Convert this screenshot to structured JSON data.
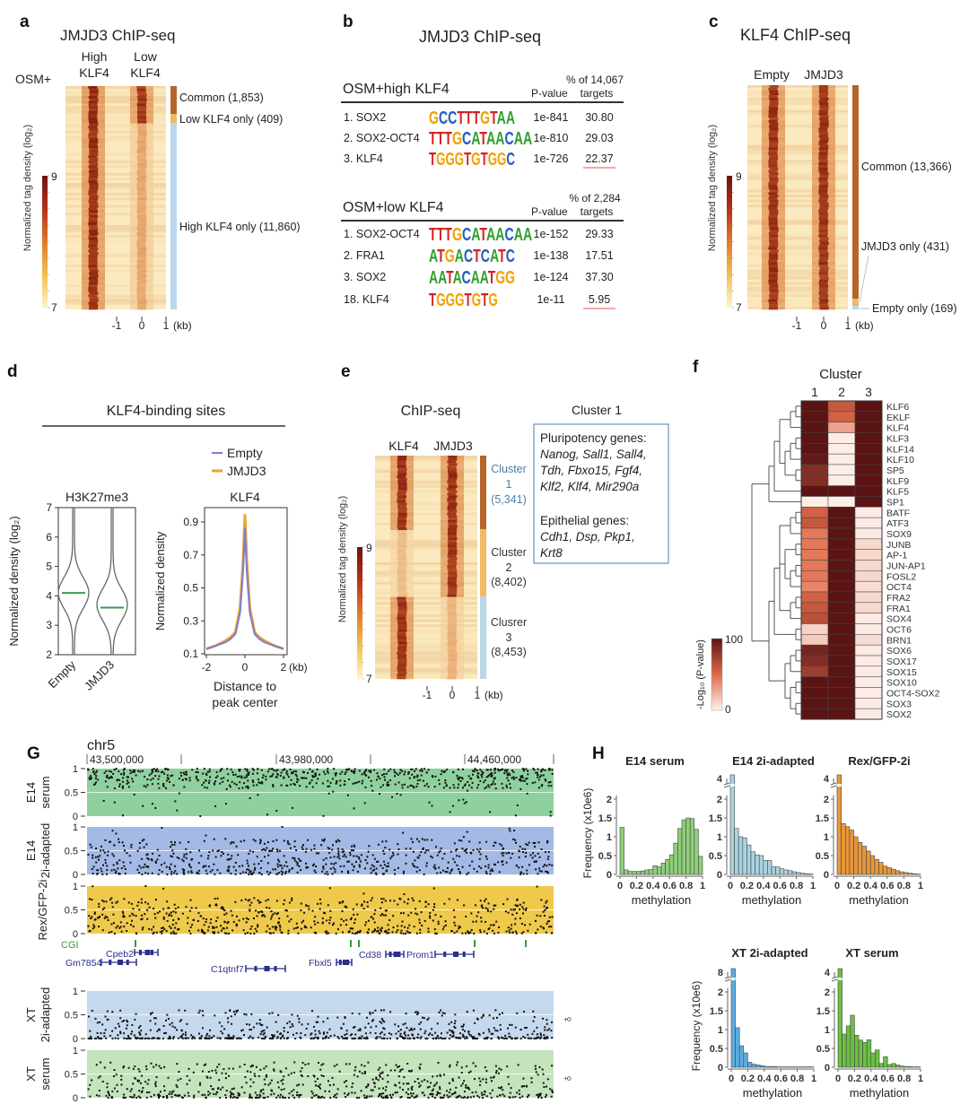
{
  "panels": {
    "a": {
      "label": "a"
    },
    "b": {
      "label": "b"
    },
    "c": {
      "label": "c"
    },
    "d": {
      "label": "d",
      "title": "KLF4-binding sites"
    },
    "e": {
      "label": "e"
    },
    "f": {
      "label": "f"
    },
    "G": {
      "label": "G"
    },
    "H": {
      "label": "H"
    }
  },
  "chart_data": [
    {
      "type": "heatmap",
      "title": "JMJD3 ChIP-seq",
      "row_label": "OSM+",
      "columns": [
        [
          "High",
          "KLF4"
        ],
        [
          "Low",
          "KLF4"
        ]
      ],
      "x_ticks": [
        "-1",
        "0",
        "1"
      ],
      "x_unit": "(kb)",
      "groups": [
        {
          "label": "Common (1,853)",
          "count": 1853,
          "color": "#b5652a"
        },
        {
          "label": "Low KLF4 only (409)",
          "count": 409,
          "color": "#f3b866"
        },
        {
          "label": "High KLF4 only (11,860)",
          "count": 11860,
          "color": "#bcd6ea"
        }
      ],
      "colorbar": {
        "label": "Normalized tag density (log₂)",
        "max": "9",
        "min": "7"
      }
    },
    {
      "type": "table",
      "title": "JMJD3 ChIP-seq",
      "motif_colors": {
        "A": "#2ca02c",
        "C": "#1f5fbf",
        "G": "#f0a000",
        "T": "#d62020"
      },
      "tables": [
        {
          "condition": "OSM+high KLF4",
          "pvalue_header": "P-value",
          "pct_header": [
            "% of 14,067",
            "targets"
          ],
          "rows": [
            {
              "rank": "1. SOX2",
              "motif": "GCCTTTGTAA",
              "pvalue": "1e-841",
              "pct": "30.80",
              "underline": false
            },
            {
              "rank": "2. SOX2-OCT4",
              "motif": "TTTGCATAACAA",
              "pvalue": "1e-810",
              "pct": "29.03",
              "underline": false
            },
            {
              "rank": "3. KLF4",
              "motif": "TGGGTGTGGC",
              "pvalue": "1e-726",
              "pct": "22.37",
              "underline": true
            }
          ]
        },
        {
          "condition": "OSM+low KLF4",
          "pvalue_header": "P-value",
          "pct_header": [
            "% of 2,284",
            "targets"
          ],
          "rows": [
            {
              "rank": "1. SOX2-OCT4",
              "motif": "TTTGCATAACAA",
              "pvalue": "1e-152",
              "pct": "29.33",
              "underline": false
            },
            {
              "rank": "2. FRA1",
              "motif": "ATGACTCATC",
              "pvalue": "1e-138",
              "pct": "17.51",
              "underline": false
            },
            {
              "rank": "3. SOX2",
              "motif": "AATACAATGG",
              "pvalue": "1e-124",
              "pct": "37.30",
              "underline": false
            },
            {
              "rank": "18. KLF4",
              "motif": "TGGGTGTG",
              "pvalue": "1e-11",
              "pct": "5.95",
              "underline": true
            }
          ]
        }
      ]
    },
    {
      "type": "heatmap",
      "title": "KLF4 ChIP-seq",
      "columns": [
        [
          "Empty"
        ],
        [
          "JMJD3"
        ]
      ],
      "x_ticks": [
        "-1",
        "0",
        "1"
      ],
      "x_unit": "(kb)",
      "groups": [
        {
          "label": "Common (13,366)",
          "count": 13366,
          "color": "#b5652a"
        },
        {
          "label": "JMJD3 only (431)",
          "count": 431,
          "color": "#f3b866"
        },
        {
          "label": "Empty only (169)",
          "count": 169,
          "color": "#bcd6ea"
        }
      ],
      "colorbar": {
        "label": "Normalized tag density (log₂)",
        "max": "9",
        "min": "7"
      }
    },
    {
      "type": "violin",
      "title": "H3K27me3",
      "ylabel": "Normalized density (log₂)",
      "ylim": [
        2,
        7
      ],
      "yticks": [
        "2",
        "3",
        "4",
        "5",
        "6",
        "7"
      ],
      "categories": [
        "Empty",
        "JMJD3"
      ],
      "medians": [
        4.1,
        3.6
      ],
      "median_color": "#3a9a4a"
    },
    {
      "type": "line",
      "title": "KLF4",
      "ylabel": "Normalized density",
      "xlabel": [
        "Distance to",
        "peak center"
      ],
      "x_unit": "(kb)",
      "xlim": [
        -2,
        2
      ],
      "ylim": [
        0.1,
        0.97
      ],
      "xticks": [
        "-2",
        "0",
        "2"
      ],
      "yticks": [
        "0.1",
        "0.3",
        "0.5",
        "0.7",
        "0.9"
      ],
      "legend": "top",
      "x": [
        -2,
        -1.5,
        -1,
        -0.75,
        -0.5,
        -0.25,
        -0.1,
        0,
        0.1,
        0.25,
        0.5,
        0.75,
        1,
        1.5,
        2
      ],
      "series": [
        {
          "name": "Empty",
          "color": "#7b7fd0",
          "values": [
            0.13,
            0.15,
            0.17,
            0.19,
            0.22,
            0.35,
            0.6,
            0.86,
            0.6,
            0.35,
            0.22,
            0.19,
            0.17,
            0.15,
            0.13
          ]
        },
        {
          "name": "JMJD3",
          "color": "#f0a030",
          "values": [
            0.13,
            0.15,
            0.18,
            0.2,
            0.23,
            0.38,
            0.66,
            0.94,
            0.66,
            0.38,
            0.23,
            0.2,
            0.18,
            0.15,
            0.13
          ]
        }
      ]
    },
    {
      "type": "heatmap",
      "title": "ChIP-seq",
      "columns": [
        [
          "KLF4"
        ],
        [
          "JMJD3"
        ]
      ],
      "x_ticks": [
        "-1",
        "0",
        "1"
      ],
      "x_unit": "(kb)",
      "groups": [
        {
          "lines": [
            "Cluster",
            "1",
            "(5,341)"
          ],
          "count": 5341,
          "color": "#b5652a",
          "text_color": "#4a7fa8"
        },
        {
          "lines": [
            "Cluster",
            "2",
            "(8,402)"
          ],
          "count": 8402,
          "color": "#f3b866",
          "text_color": "#333333"
        },
        {
          "lines": [
            "Clusrer",
            "3",
            "(8,453)"
          ],
          "count": 8453,
          "color": "#bcd6ea",
          "text_color": "#333333"
        }
      ],
      "colorbar": {
        "label": "Normalized tag density (log₂)",
        "max": "9",
        "min": "7"
      },
      "annotation": {
        "title": "Cluster 1",
        "sections": [
          {
            "heading": "Pluripotency genes:",
            "genes": [
              "Nanog, Sall1, Sall4,",
              "Tdh, Fbxo15, Fgf4,",
              "Klf2, Klf4, Mir290a"
            ]
          },
          {
            "heading": "Epithelial genes:",
            "genes": [
              "Cdh1, Dsp, Pkp1,",
              "Krt8"
            ]
          }
        ]
      }
    },
    {
      "type": "heatmap",
      "title": "Cluster",
      "columns": [
        "1",
        "2",
        "3"
      ],
      "rows": [
        "KLF6",
        "EKLF",
        "KLF4",
        "KLF3",
        "KLF14",
        "KLF10",
        "SP5",
        "KLF9",
        "KLF5",
        "SP1",
        "BATF",
        "ATF3",
        "SOX9",
        "JUNB",
        "AP-1",
        "JUN-AP1",
        "FOSL2",
        "OCT4",
        "FRA2",
        "FRA1",
        "SOX4",
        "OCT6",
        "BRN1",
        "SOX6",
        "SOX17",
        "SOX15",
        "SOX10",
        "OCT4-SOX2",
        "SOX3",
        "SOX2"
      ],
      "values": [
        [
          100,
          60,
          100
        ],
        [
          100,
          55,
          100
        ],
        [
          100,
          30,
          100
        ],
        [
          100,
          2,
          100
        ],
        [
          100,
          2,
          100
        ],
        [
          97,
          2,
          100
        ],
        [
          85,
          2,
          100
        ],
        [
          85,
          2,
          100
        ],
        [
          100,
          100,
          100
        ],
        [
          2,
          2,
          100
        ],
        [
          55,
          100,
          3
        ],
        [
          60,
          100,
          3
        ],
        [
          45,
          100,
          3
        ],
        [
          45,
          100,
          10
        ],
        [
          45,
          100,
          10
        ],
        [
          45,
          100,
          10
        ],
        [
          45,
          100,
          10
        ],
        [
          40,
          100,
          8
        ],
        [
          55,
          100,
          10
        ],
        [
          60,
          100,
          10
        ],
        [
          65,
          100,
          3
        ],
        [
          12,
          100,
          3
        ],
        [
          15,
          100,
          8
        ],
        [
          90,
          100,
          3
        ],
        [
          85,
          100,
          3
        ],
        [
          75,
          100,
          3
        ],
        [
          100,
          100,
          3
        ],
        [
          100,
          100,
          3
        ],
        [
          100,
          100,
          3
        ],
        [
          100,
          100,
          3
        ]
      ],
      "colorbar": {
        "label": "-Log₁₀ (P-value)",
        "max": "100",
        "min": "0"
      },
      "color_scale": [
        "#fdf3ee",
        "#e06a4a",
        "#5a1414"
      ],
      "dendrogram": "left"
    },
    {
      "type": "scatter",
      "chromosome": "chr5",
      "coordinate_ticks": [
        "43,500,000",
        "43,980,000",
        "44,460,000"
      ],
      "ylim": [
        0,
        1
      ],
      "yticks": [
        "0",
        "0.5",
        "1"
      ],
      "tracks": [
        {
          "label": [
            "E14",
            "serum"
          ],
          "color": "#8fd19e"
        },
        {
          "label": [
            "E14",
            "2i-adapted"
          ],
          "color": "#a3b9e6"
        },
        {
          "label": [
            "Rex/GFP-2i"
          ],
          "color": "#efc94c"
        },
        {
          "label": [
            "XT",
            "2i-adapted"
          ],
          "color": "#c5d9ee",
          "sex": "♀"
        },
        {
          "label": [
            "XT",
            "serum"
          ],
          "color": "#c4e4bc",
          "sex": "♀"
        }
      ],
      "cgi_label": "CGI",
      "genes": [
        "Cpeb2",
        "Gm7854",
        "C1qtnf7",
        "Fbxl5",
        "Cd38",
        "Prom1"
      ]
    },
    {
      "type": "bar",
      "title": "E14 serum",
      "xlabel": "methylation",
      "ylabel": "Frequency (x10e6)",
      "xlim": [
        0,
        1
      ],
      "xticks": [
        "0",
        "0.2",
        "0.4",
        "0.6",
        "0.8",
        "1"
      ],
      "yticks": [
        "0",
        "0.5",
        "1",
        "1.5",
        "2"
      ],
      "break_label": "",
      "color": "#8fcf7a",
      "values": [
        1.25,
        0.12,
        0.08,
        0.08,
        0.08,
        0.09,
        0.12,
        0.13,
        0.23,
        0.2,
        0.3,
        0.4,
        0.52,
        0.83,
        1.22,
        1.45,
        1.5,
        1.48,
        1.2,
        0.48
      ]
    },
    {
      "type": "bar",
      "title": "E14 2i-adapted",
      "xlabel": "methylation",
      "ylabel": "",
      "xlim": [
        0,
        1
      ],
      "xticks": [
        "0",
        "0.2",
        "0.4",
        "0.6",
        "0.8",
        "1"
      ],
      "yticks": [
        "0",
        "0.5",
        "1",
        "1.5",
        "2"
      ],
      "break_label": "4",
      "color": "#a9d3e0",
      "values": [
        4.2,
        1.22,
        1.0,
        0.97,
        0.78,
        0.6,
        0.52,
        0.5,
        0.37,
        0.37,
        0.2,
        0.2,
        0.15,
        0.12,
        0.1,
        0.07,
        0.05,
        0.03,
        0.02,
        0.01
      ]
    },
    {
      "type": "bar",
      "title": "Rex/GFP-2i",
      "xlabel": "methylation",
      "ylabel": "",
      "xlim": [
        0,
        1
      ],
      "xticks": [
        "0",
        "0.2",
        "0.4",
        "0.6",
        "0.8",
        "1"
      ],
      "yticks": [
        "0",
        "0.5",
        "1",
        "1.5",
        "2"
      ],
      "break_label": "4",
      "color": "#e8973a",
      "values": [
        3.8,
        1.35,
        1.27,
        1.18,
        1.0,
        0.85,
        0.75,
        0.62,
        0.5,
        0.4,
        0.32,
        0.22,
        0.18,
        0.14,
        0.1,
        0.07,
        0.05,
        0.03,
        0.02,
        0.01
      ]
    },
    {
      "type": "bar",
      "title": "XT 2i-adapted",
      "xlabel": "methylation",
      "ylabel": "Frequency (x10e6)",
      "xlim": [
        0,
        1
      ],
      "xticks": [
        "0",
        "0.2",
        "0.4",
        "0.6",
        "0.8",
        "1"
      ],
      "yticks": [
        "0",
        "0.5",
        "1",
        "1.5",
        "2"
      ],
      "break_label": "8",
      "color": "#5aaee0",
      "values": [
        9.5,
        1.05,
        0.57,
        0.38,
        0.13,
        0.08,
        0.06,
        0.04,
        0.02,
        0.02,
        0.02,
        0.01,
        0.01,
        0.01,
        0.01,
        0.01,
        0.01,
        0.01,
        0.01,
        0.01
      ]
    },
    {
      "type": "bar",
      "title": "XT serum",
      "xlabel": "methylation",
      "ylabel": "",
      "xlim": [
        0,
        1
      ],
      "xticks": [
        "0",
        "0.2",
        "0.4",
        "0.6",
        "0.8",
        "1"
      ],
      "yticks": [
        "0",
        "0.5",
        "1",
        "1.5",
        "2"
      ],
      "break_label": "4",
      "color": "#6cbf45",
      "values": [
        3.8,
        0.88,
        1.1,
        1.38,
        0.85,
        0.72,
        0.66,
        0.73,
        0.38,
        0.46,
        0.1,
        0.28,
        0.07,
        0.1,
        0.06,
        0.03,
        0.02,
        0.02,
        0.01,
        0.01
      ]
    }
  ]
}
